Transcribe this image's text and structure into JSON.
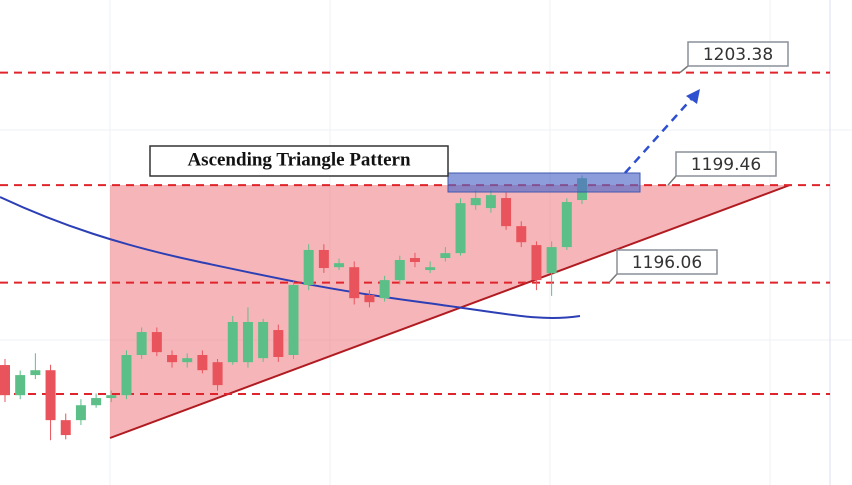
{
  "chart_data": {
    "type": "candlestick",
    "title": "Ascending Triangle Pattern",
    "ylim": [
      1189.01,
      1205.91
    ],
    "levels": [
      1203.38,
      1199.46,
      1196.06
    ],
    "level_color": "#e0242b",
    "up_color": "#5cbf88",
    "down_color": "#e9545c",
    "open": [
      1193.19,
      1192.14,
      1192.84,
      1193.01,
      1191.27,
      1191.27,
      1191.79,
      1192.04,
      1192.14,
      1193.54,
      1194.34,
      1193.54,
      1193.29,
      1193.54,
      1193.29,
      1193.29,
      1193.29,
      1193.43,
      1194.41,
      1193.54,
      1195.98,
      1197.2,
      1196.6,
      1196.6,
      1195.63,
      1195.52,
      1196.15,
      1196.92,
      1196.5,
      1196.92,
      1197.09,
      1198.76,
      1198.66,
      1199.01,
      1198.03,
      1197.37,
      1196.39,
      1197.3,
      1198.94
    ],
    "high": [
      1193.4,
      1193.0,
      1193.6,
      1193.2,
      1191.5,
      1192.0,
      1192.2,
      1192.3,
      1193.7,
      1194.5,
      1194.5,
      1193.7,
      1193.6,
      1193.7,
      1193.4,
      1194.9,
      1195.2,
      1194.8,
      1194.6,
      1196.1,
      1197.4,
      1197.4,
      1196.9,
      1196.8,
      1195.8,
      1196.3,
      1197.0,
      1197.1,
      1196.8,
      1197.3,
      1199.0,
      1199.3,
      1199.3,
      1199.2,
      1198.2,
      1197.5,
      1197.5,
      1199.0,
      1199.8
    ],
    "low": [
      1191.9,
      1192.0,
      1192.7,
      1190.57,
      1190.6,
      1191.1,
      1191.7,
      1191.9,
      1192.0,
      1193.4,
      1193.5,
      1193.1,
      1193.1,
      1192.9,
      1192.3,
      1193.2,
      1193.1,
      1193.3,
      1193.3,
      1193.4,
      1195.8,
      1196.4,
      1196.5,
      1195.3,
      1195.2,
      1195.4,
      1196.0,
      1196.6,
      1196.4,
      1196.8,
      1197.0,
      1198.6,
      1198.5,
      1197.9,
      1197.3,
      1195.8,
      1195.6,
      1197.2,
      1198.8
    ],
    "close": [
      1192.14,
      1192.84,
      1193.01,
      1191.27,
      1190.75,
      1191.79,
      1192.04,
      1192.14,
      1193.54,
      1194.34,
      1193.64,
      1193.29,
      1193.43,
      1193.01,
      1192.49,
      1194.69,
      1194.69,
      1194.69,
      1193.47,
      1195.98,
      1197.2,
      1196.57,
      1196.74,
      1195.52,
      1195.38,
      1196.15,
      1196.85,
      1196.78,
      1196.6,
      1197.09,
      1198.83,
      1199.01,
      1199.11,
      1198.03,
      1197.47,
      1196.15,
      1197.3,
      1198.87,
      1199.7
    ]
  }
}
